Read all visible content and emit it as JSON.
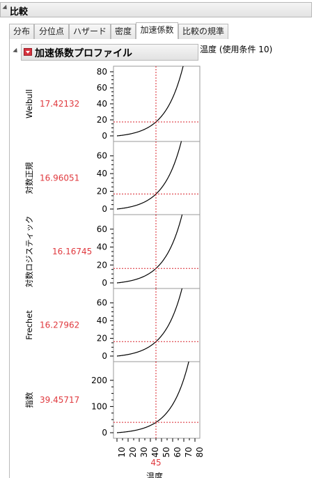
{
  "window": {
    "title": "比較"
  },
  "tabs": [
    {
      "label": "分布"
    },
    {
      "label": "分位点"
    },
    {
      "label": "ハザード"
    },
    {
      "label": "密度"
    },
    {
      "label": "加速係数",
      "active": true
    },
    {
      "label": "比較の規準"
    }
  ],
  "profiler": {
    "title": "加速係数プロファイル",
    "condition_label": "温度 (使用条件 10)"
  },
  "chart_data": {
    "type": "line",
    "x_label": "温度",
    "x_value": "45",
    "x_ticks": [
      "10",
      "20",
      "30",
      "40",
      "50",
      "60",
      "70",
      "80"
    ],
    "xlim": [
      10,
      80
    ],
    "current_x": 45,
    "panels": [
      {
        "name": "Weibull",
        "value": "17.42132",
        "y_ticks": [
          "0",
          "20",
          "40",
          "60",
          "80"
        ],
        "ylim": [
          0,
          80
        ]
      },
      {
        "name": "対数正規",
        "value": "16.96051",
        "y_ticks": [
          "0",
          "20",
          "40",
          "60"
        ],
        "ylim": [
          0,
          70
        ]
      },
      {
        "name": "対数ロジスティック",
        "value": "16.16745",
        "y_ticks": [
          "0",
          "20",
          "40",
          "60"
        ],
        "ylim": [
          0,
          70
        ]
      },
      {
        "name": "Frechet",
        "value": "16.27962",
        "y_ticks": [
          "0",
          "20",
          "40",
          "60"
        ],
        "ylim": [
          0,
          70
        ]
      },
      {
        "name": "指数",
        "value": "39.45717",
        "y_ticks": [
          "0",
          "100",
          "200"
        ],
        "ylim": [
          0,
          250
        ]
      }
    ]
  }
}
